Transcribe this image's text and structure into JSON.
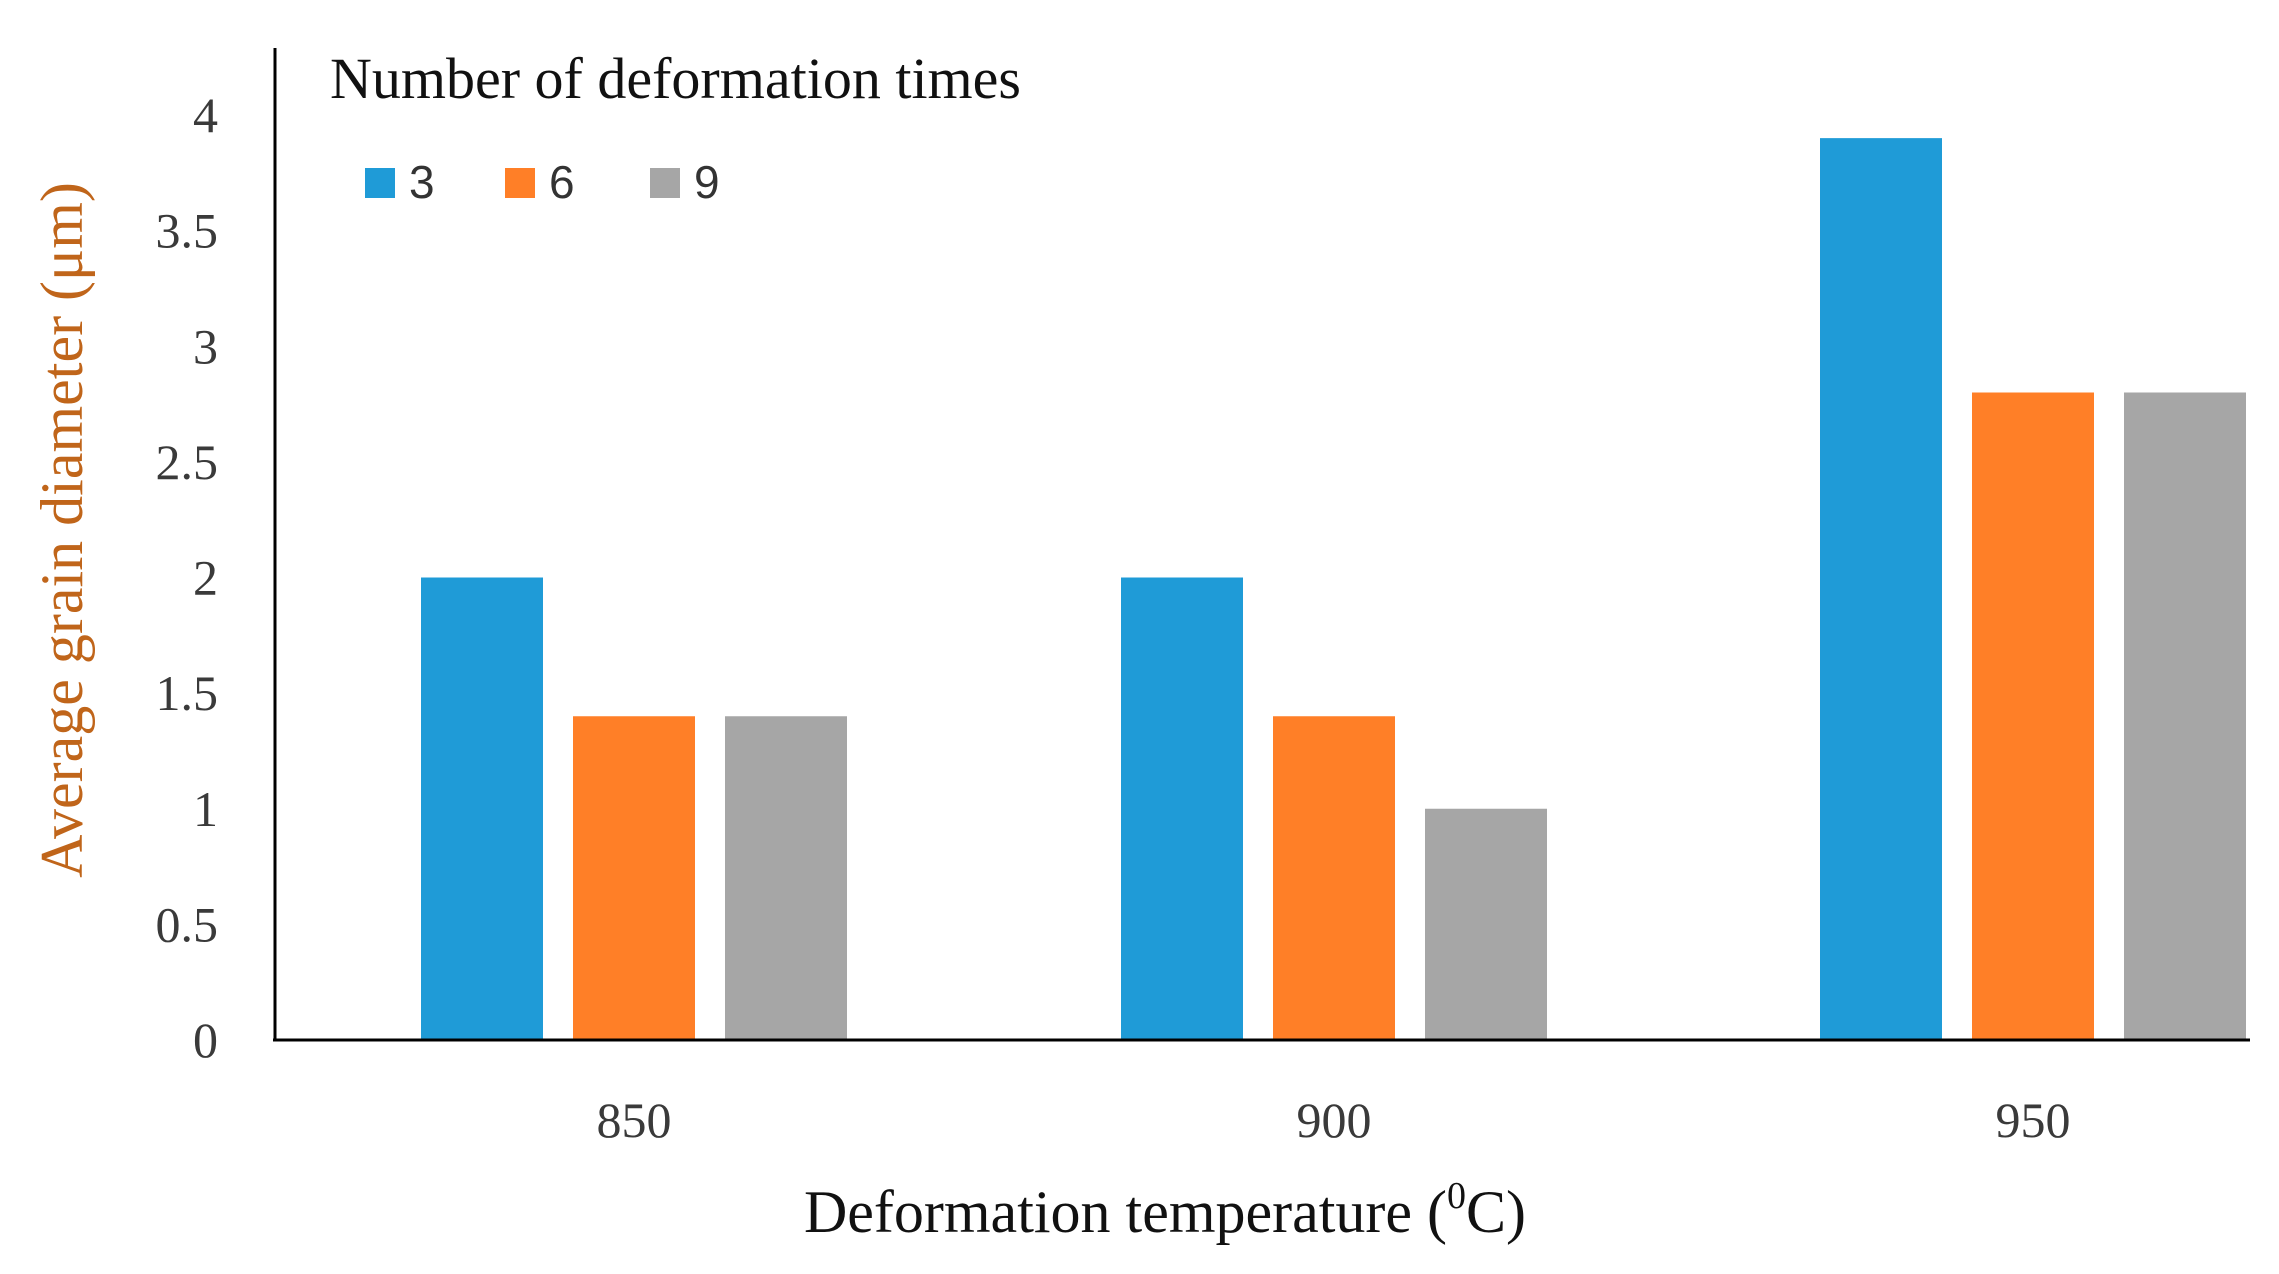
{
  "chart_data": {
    "type": "bar",
    "categories": [
      "850",
      "900",
      "950"
    ],
    "series": [
      {
        "name": "3",
        "color": "#1f9bd7",
        "values": [
          2.0,
          2.0,
          3.9
        ]
      },
      {
        "name": "6",
        "color": "#ff7f27",
        "values": [
          1.4,
          1.4,
          2.8
        ]
      },
      {
        "name": "9",
        "color": "#a6a6a6",
        "values": [
          1.4,
          1.0,
          2.8
        ]
      }
    ],
    "legend_title": "Number of deformation times",
    "legend_position": "top-left",
    "xlabel_main": "Deformation temperature (",
    "xlabel_sup": "0",
    "xlabel_end": "C)",
    "ylabel": "Average grain diameter (μm)",
    "ylim": [
      0,
      4
    ],
    "yticks": [
      "0",
      "0.5",
      "1",
      "1.5",
      "2",
      "2.5",
      "3",
      "3.5",
      "4"
    ],
    "grid": false,
    "axis_color": "#000000",
    "ylabel_color": "#c0651a"
  }
}
